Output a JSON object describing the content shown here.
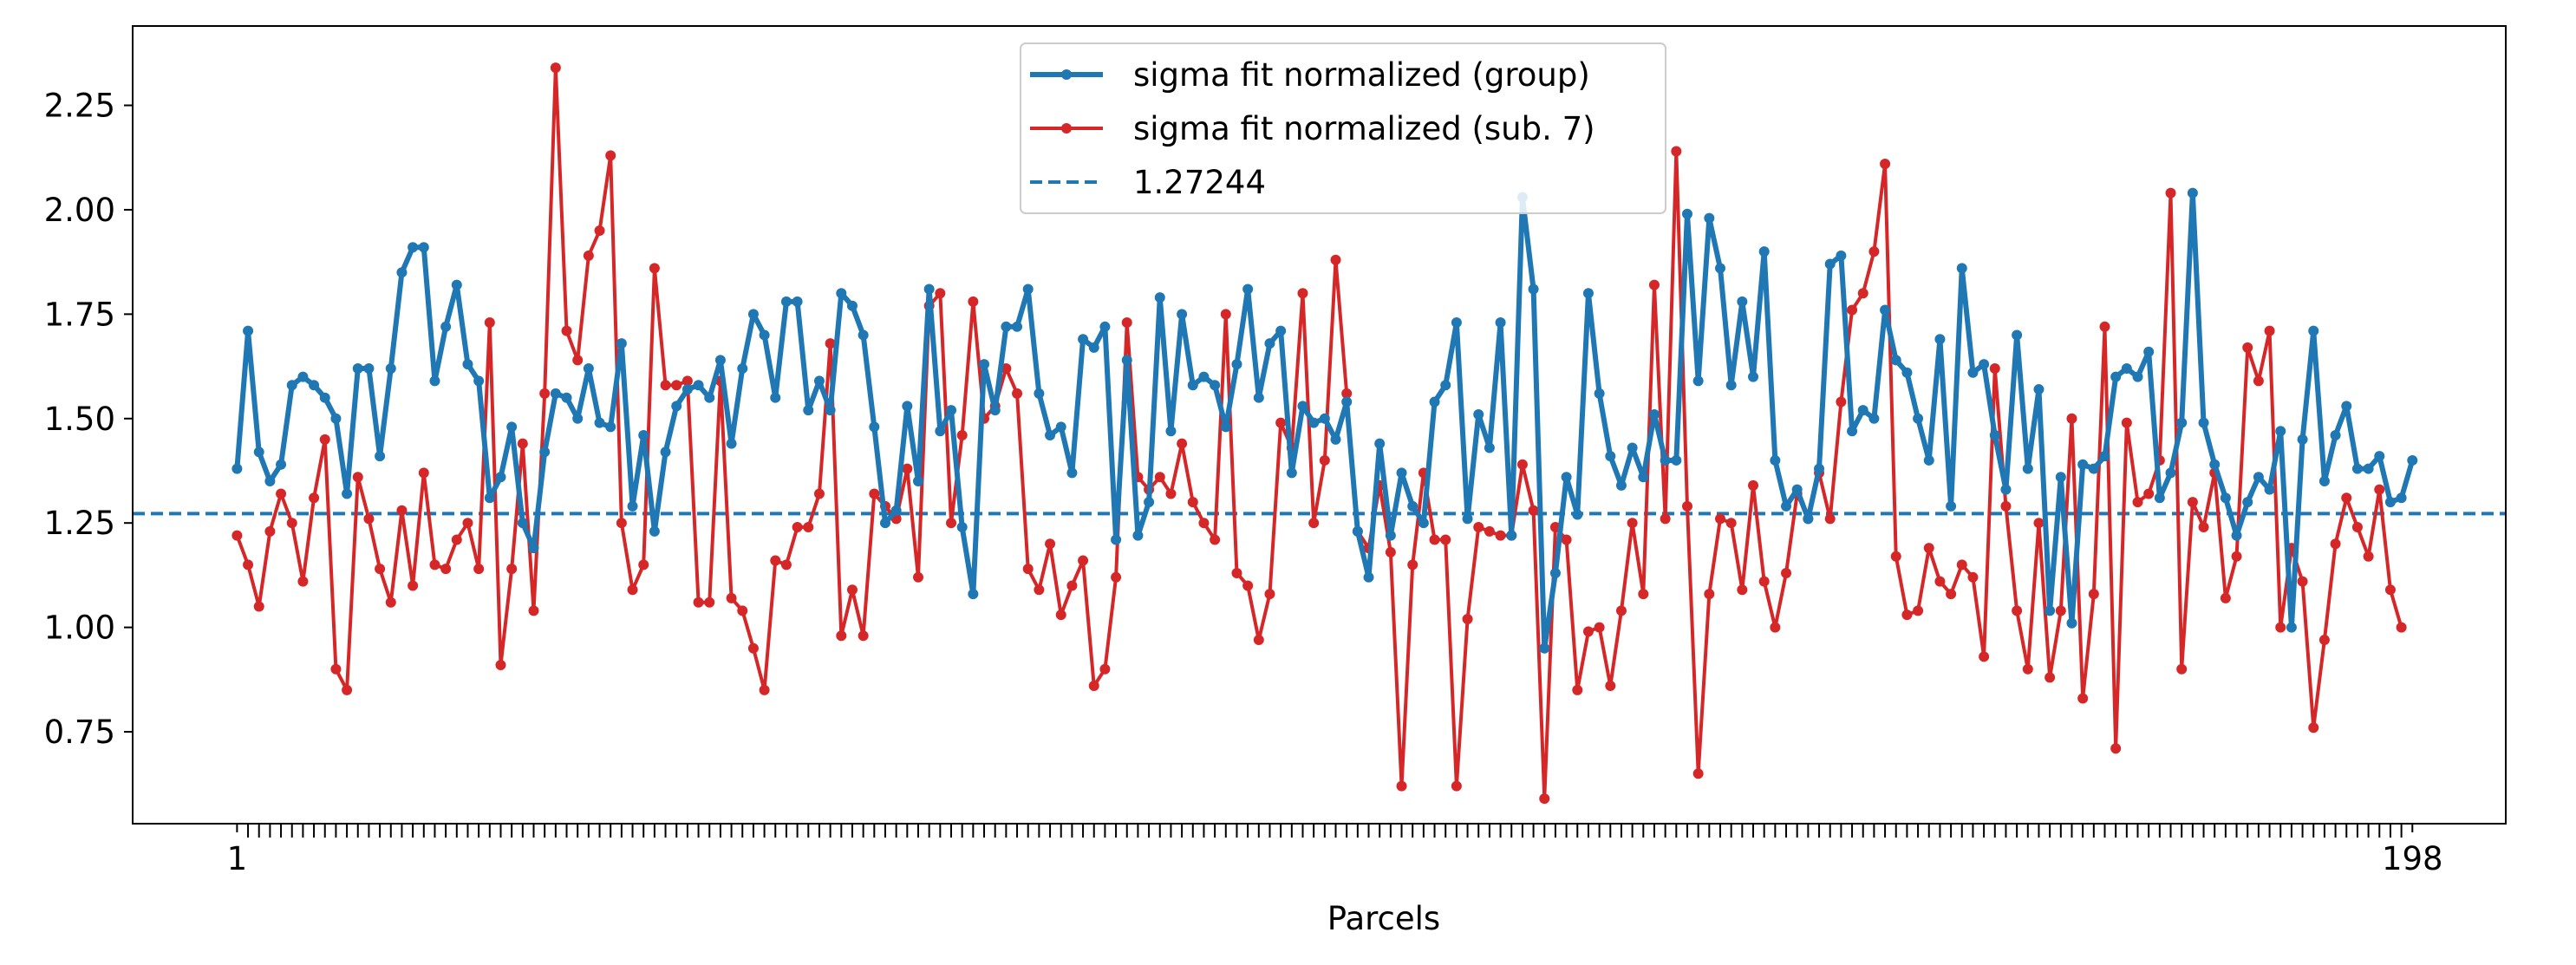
{
  "chart_data": {
    "type": "line",
    "title": "",
    "xlabel": "Parcels",
    "ylabel": "",
    "x_tick_labels": [
      "1",
      "198"
    ],
    "y_ticks": [
      0.75,
      1.0,
      1.25,
      1.5,
      1.75,
      2.0,
      2.25
    ],
    "y_tick_labels": [
      "0.75",
      "1.00",
      "1.25",
      "1.50",
      "1.75",
      "2.00",
      "2.25"
    ],
    "xlim": [
      -8.5,
      207.5
    ],
    "ylim": [
      0.53,
      2.44
    ],
    "grid": false,
    "legend_position": "top-center",
    "series": [
      {
        "name": "sigma fit normalized (group)",
        "color": "#1f77b4",
        "style": "solid",
        "x_start": 1,
        "values": [
          1.38,
          1.71,
          1.42,
          1.35,
          1.39,
          1.58,
          1.6,
          1.58,
          1.55,
          1.5,
          1.32,
          1.62,
          1.62,
          1.41,
          1.62,
          1.85,
          1.91,
          1.91,
          1.59,
          1.72,
          1.82,
          1.63,
          1.59,
          1.31,
          1.36,
          1.48,
          1.25,
          1.19,
          1.42,
          1.56,
          1.55,
          1.5,
          1.62,
          1.49,
          1.48,
          1.68,
          1.29,
          1.46,
          1.23,
          1.42,
          1.53,
          1.57,
          1.58,
          1.55,
          1.64,
          1.44,
          1.62,
          1.75,
          1.7,
          1.55,
          1.78,
          1.78,
          1.52,
          1.59,
          1.52,
          1.8,
          1.77,
          1.7,
          1.48,
          1.25,
          1.28,
          1.53,
          1.35,
          1.81,
          1.47,
          1.52,
          1.24,
          1.08,
          1.63,
          1.52,
          1.72,
          1.72,
          1.81,
          1.56,
          1.46,
          1.48,
          1.37,
          1.69,
          1.67,
          1.72,
          1.21,
          1.64,
          1.22,
          1.3,
          1.79,
          1.47,
          1.75,
          1.58,
          1.6,
          1.58,
          1.48,
          1.63,
          1.81,
          1.55,
          1.68,
          1.71,
          1.37,
          1.53,
          1.49,
          1.5,
          1.45,
          1.54,
          1.23,
          1.12,
          1.44,
          1.22,
          1.37,
          1.29,
          1.25,
          1.54,
          1.58,
          1.73,
          1.26,
          1.51,
          1.43,
          1.73,
          1.22,
          2.03,
          1.81,
          0.95,
          1.13,
          1.36,
          1.27,
          1.8,
          1.56,
          1.41,
          1.34,
          1.43,
          1.36,
          1.51,
          1.4,
          1.4,
          1.99,
          1.59,
          1.98,
          1.86,
          1.58,
          1.78,
          1.6,
          1.9,
          1.4,
          1.29,
          1.33,
          1.26,
          1.38,
          1.87,
          1.89,
          1.47,
          1.52,
          1.5,
          1.76,
          1.64,
          1.61,
          1.5,
          1.4,
          1.69,
          1.29,
          1.86,
          1.61,
          1.63,
          1.46,
          1.33,
          1.7,
          1.38,
          1.57,
          1.04,
          1.36,
          1.01,
          1.39,
          1.38,
          1.41,
          1.6,
          1.62,
          1.6,
          1.66,
          1.31,
          1.37,
          1.49,
          2.04,
          1.49,
          1.39,
          1.31,
          1.22,
          1.3,
          1.36,
          1.33,
          1.47,
          1.0,
          1.45,
          1.71,
          1.35,
          1.46,
          1.53,
          1.38,
          1.38,
          1.41,
          1.3,
          1.31,
          1.4
        ]
      },
      {
        "name": "sigma fit normalized (sub. 7)",
        "color": "#d62728",
        "style": "solid",
        "x_start": 1,
        "values": [
          1.22,
          1.15,
          1.05,
          1.23,
          1.32,
          1.25,
          1.11,
          1.31,
          1.45,
          0.9,
          0.85,
          1.36,
          1.26,
          1.14,
          1.06,
          1.28,
          1.1,
          1.37,
          1.15,
          1.14,
          1.21,
          1.25,
          1.14,
          1.73,
          0.91,
          1.14,
          1.44,
          1.04,
          1.56,
          2.34,
          1.71,
          1.64,
          1.89,
          1.95,
          2.13,
          1.25,
          1.09,
          1.15,
          1.86,
          1.58,
          1.58,
          1.59,
          1.06,
          1.06,
          1.59,
          1.07,
          1.04,
          0.95,
          0.85,
          1.16,
          1.15,
          1.24,
          1.24,
          1.32,
          1.68,
          0.98,
          1.09,
          0.98,
          1.32,
          1.29,
          1.26,
          1.38,
          1.12,
          1.77,
          1.8,
          1.25,
          1.46,
          1.78,
          1.5,
          1.53,
          1.62,
          1.56,
          1.14,
          1.09,
          1.2,
          1.03,
          1.1,
          1.16,
          0.86,
          0.9,
          1.12,
          1.73,
          1.36,
          1.33,
          1.36,
          1.32,
          1.44,
          1.3,
          1.25,
          1.21,
          1.75,
          1.13,
          1.1,
          0.97,
          1.08,
          1.49,
          1.43,
          1.8,
          1.25,
          1.4,
          1.88,
          1.56,
          1.23,
          1.19,
          1.34,
          1.18,
          0.62,
          1.15,
          1.37,
          1.21,
          1.21,
          0.62,
          1.02,
          1.24,
          1.23,
          1.22,
          1.22,
          1.39,
          1.28,
          0.59,
          1.24,
          1.21,
          0.85,
          0.99,
          1.0,
          0.86,
          1.04,
          1.25,
          1.08,
          1.82,
          1.26,
          2.14,
          1.29,
          0.65,
          1.08,
          1.26,
          1.25,
          1.09,
          1.34,
          1.11,
          1.0,
          1.13,
          1.32,
          1.26,
          1.37,
          1.26,
          1.54,
          1.76,
          1.8,
          1.9,
          2.11,
          1.17,
          1.03,
          1.04,
          1.19,
          1.11,
          1.08,
          1.15,
          1.12,
          0.93,
          1.62,
          1.29,
          1.04,
          0.9,
          1.25,
          0.88,
          1.04,
          1.5,
          0.83,
          1.08,
          1.72,
          0.71,
          1.49,
          1.3,
          1.32,
          1.4,
          2.04,
          0.9,
          1.3,
          1.24,
          1.37,
          1.07,
          1.17,
          1.67,
          1.59,
          1.71,
          1.0,
          1.19,
          1.11,
          0.76,
          0.97,
          1.2,
          1.31,
          1.24,
          1.17,
          1.33,
          1.09,
          1.0
        ]
      },
      {
        "name": "1.27244",
        "color": "#1f77b4",
        "style": "dashed",
        "y": 1.27244
      }
    ]
  }
}
